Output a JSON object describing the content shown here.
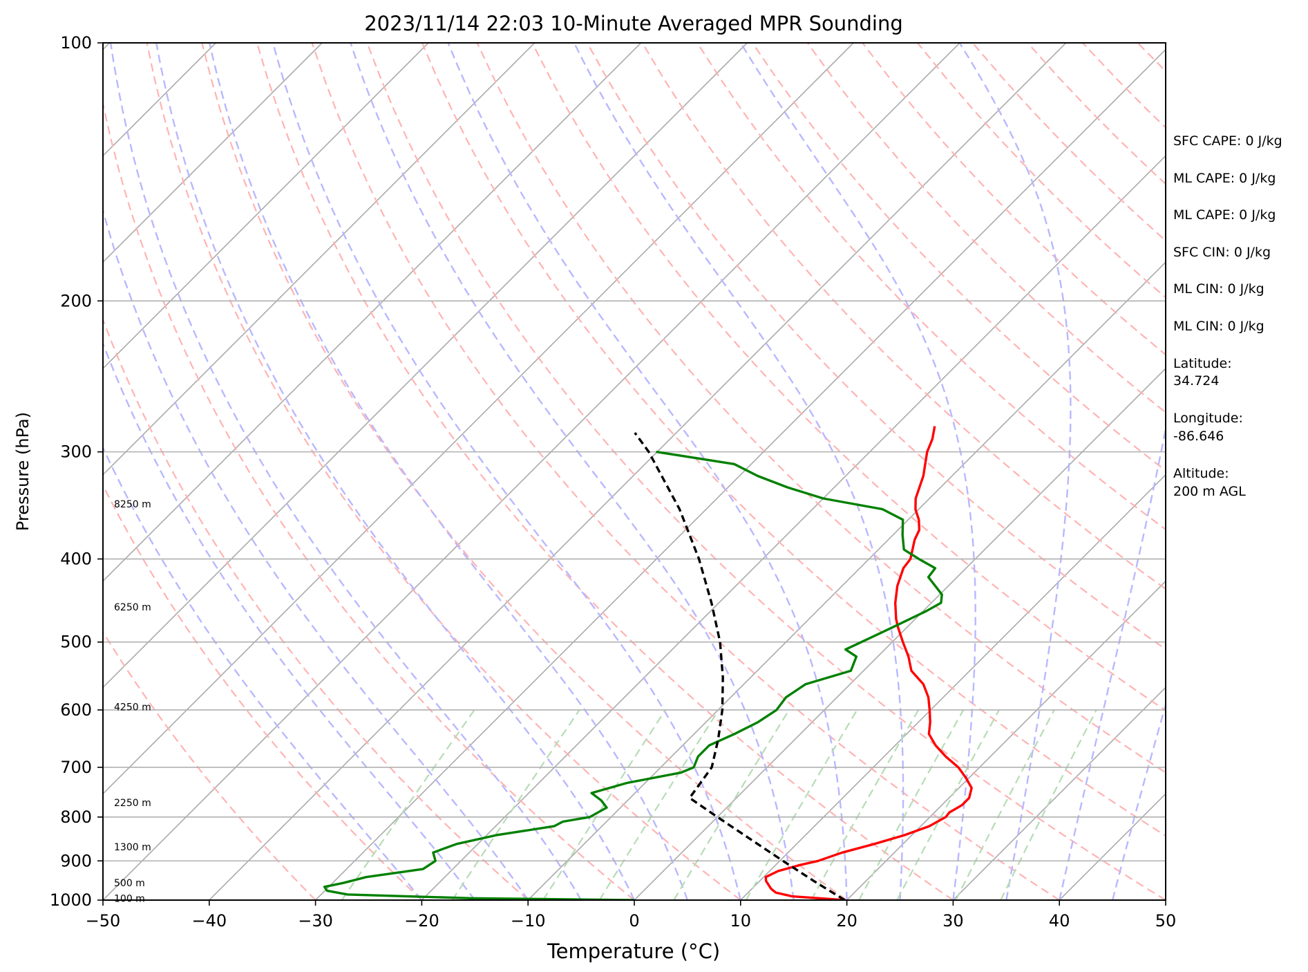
{
  "chart_data": {
    "type": "line",
    "title": "2023/11/14 22:03 10-Minute Averaged MPR Sounding",
    "xlabel": "Temperature (°C)",
    "ylabel": "Pressure (hPa)",
    "xlim": [
      -50,
      50
    ],
    "ylim": [
      1000,
      100
    ],
    "y_scale": "log",
    "skew": true,
    "grid": true,
    "x_ticks": [
      "−50",
      "−40",
      "−30",
      "−20",
      "−10",
      "0",
      "10",
      "20",
      "30",
      "40",
      "50"
    ],
    "y_ticks": [
      "100",
      "200",
      "300",
      "400",
      "500",
      "600",
      "700",
      "800",
      "900",
      "1000"
    ],
    "height_labels": [
      {
        "text": "8250 m",
        "p": 345
      },
      {
        "text": "6250 m",
        "p": 455
      },
      {
        "text": "4250 m",
        "p": 595
      },
      {
        "text": "2250 m",
        "p": 770
      },
      {
        "text": "1300 m",
        "p": 867
      },
      {
        "text": "500 m",
        "p": 955
      },
      {
        "text": "100 m",
        "p": 995
      }
    ],
    "series": [
      {
        "kind": "temperature",
        "color": "#ff0000",
        "points": [
          [
            1000,
            19.8
          ],
          [
            990,
            14.5
          ],
          [
            980,
            12.6
          ],
          [
            970,
            11.8
          ],
          [
            950,
            10.6
          ],
          [
            940,
            10.2
          ],
          [
            925,
            10.8
          ],
          [
            910,
            12.3
          ],
          [
            900,
            13.6
          ],
          [
            880,
            15.1
          ],
          [
            860,
            17.3
          ],
          [
            840,
            19.3
          ],
          [
            820,
            20.8
          ],
          [
            800,
            21.5
          ],
          [
            790,
            21.4
          ],
          [
            775,
            21.9
          ],
          [
            760,
            21.9
          ],
          [
            740,
            21.2
          ],
          [
            720,
            19.7
          ],
          [
            700,
            18.0
          ],
          [
            680,
            15.8
          ],
          [
            660,
            13.8
          ],
          [
            640,
            12.1
          ],
          [
            620,
            11.1
          ],
          [
            600,
            9.9
          ],
          [
            580,
            8.6
          ],
          [
            560,
            6.9
          ],
          [
            540,
            4.5
          ],
          [
            520,
            2.9
          ],
          [
            500,
            1.0
          ],
          [
            480,
            -0.9
          ],
          [
            470,
            -1.8
          ],
          [
            450,
            -3.4
          ],
          [
            430,
            -4.8
          ],
          [
            410,
            -5.9
          ],
          [
            400,
            -6.1
          ],
          [
            380,
            -7.5
          ],
          [
            370,
            -8.0
          ],
          [
            360,
            -9.0
          ],
          [
            350,
            -10.3
          ],
          [
            340,
            -11.3
          ],
          [
            320,
            -12.7
          ],
          [
            300,
            -14.6
          ],
          [
            290,
            -15.3
          ],
          [
            280,
            -16.3
          ]
        ]
      },
      {
        "kind": "dewpoint",
        "color": "#008000",
        "points": [
          [
            1000,
            0.0
          ],
          [
            995,
            -15.5
          ],
          [
            985,
            -27.5
          ],
          [
            975,
            -29.8
          ],
          [
            965,
            -30.4
          ],
          [
            955,
            -29.0
          ],
          [
            940,
            -27.4
          ],
          [
            920,
            -22.8
          ],
          [
            900,
            -22.4
          ],
          [
            880,
            -23.4
          ],
          [
            860,
            -22.0
          ],
          [
            840,
            -19.1
          ],
          [
            820,
            -14.5
          ],
          [
            810,
            -14.1
          ],
          [
            800,
            -12.0
          ],
          [
            780,
            -11.3
          ],
          [
            765,
            -12.5
          ],
          [
            750,
            -14.1
          ],
          [
            730,
            -11.7
          ],
          [
            710,
            -7.6
          ],
          [
            700,
            -6.9
          ],
          [
            680,
            -7.5
          ],
          [
            660,
            -7.5
          ],
          [
            640,
            -6.2
          ],
          [
            620,
            -5.1
          ],
          [
            600,
            -4.5
          ],
          [
            580,
            -4.8
          ],
          [
            560,
            -4.2
          ],
          [
            540,
            -1.2
          ],
          [
            520,
            -2.0
          ],
          [
            510,
            -3.7
          ],
          [
            500,
            -2.9
          ],
          [
            480,
            -1.3
          ],
          [
            460,
            0.3
          ],
          [
            450,
            0.9
          ],
          [
            440,
            0.2
          ],
          [
            420,
            -2.7
          ],
          [
            410,
            -2.9
          ],
          [
            400,
            -5.3
          ],
          [
            390,
            -7.6
          ],
          [
            375,
            -9.1
          ],
          [
            360,
            -10.5
          ],
          [
            350,
            -13.4
          ],
          [
            340,
            -20.0
          ],
          [
            330,
            -24.4
          ],
          [
            320,
            -28.3
          ],
          [
            310,
            -31.6
          ],
          [
            300,
            -40.1
          ]
        ]
      },
      {
        "kind": "parcel",
        "color": "#000000",
        "points": [
          [
            1000,
            19.8
          ],
          [
            950,
            15.1
          ],
          [
            900,
            10.3
          ],
          [
            850,
            5.3
          ],
          [
            800,
            0.0
          ],
          [
            760,
            -4.4
          ],
          [
            700,
            -5.2
          ],
          [
            650,
            -7.2
          ],
          [
            600,
            -9.6
          ],
          [
            550,
            -12.6
          ],
          [
            500,
            -16.2
          ],
          [
            450,
            -20.7
          ],
          [
            400,
            -26.0
          ],
          [
            350,
            -32.5
          ],
          [
            300,
            -40.8
          ],
          [
            285,
            -43.9
          ]
        ]
      }
    ],
    "annotations": {
      "sfc_cape": "SFC CAPE: 0 J/kg",
      "ml_cape_1": "ML CAPE: 0 J/kg",
      "ml_cape_2": "ML CAPE: 0 J/kg",
      "sfc_cin": "SFC CIN: 0 J/kg",
      "ml_cin_1": "ML CIN: 0 J/kg",
      "ml_cin_2": "ML CIN: 0 J/kg",
      "latitude_label": "Latitude:",
      "latitude_value": "34.724",
      "longitude_label": "Longitude:",
      "longitude_value": "-86.646",
      "altitude_label": "Altitude:",
      "altitude_value": "200 m AGL"
    },
    "colors": {
      "isotherm": "#aaaaaa",
      "dry_adiabat": "#ffb3b3",
      "moist_adiabat": "#b8b8ff",
      "mixing_ratio": "#b6dcb6",
      "temperature": "#ff0000",
      "dewpoint": "#008000",
      "parcel": "#000000"
    }
  }
}
